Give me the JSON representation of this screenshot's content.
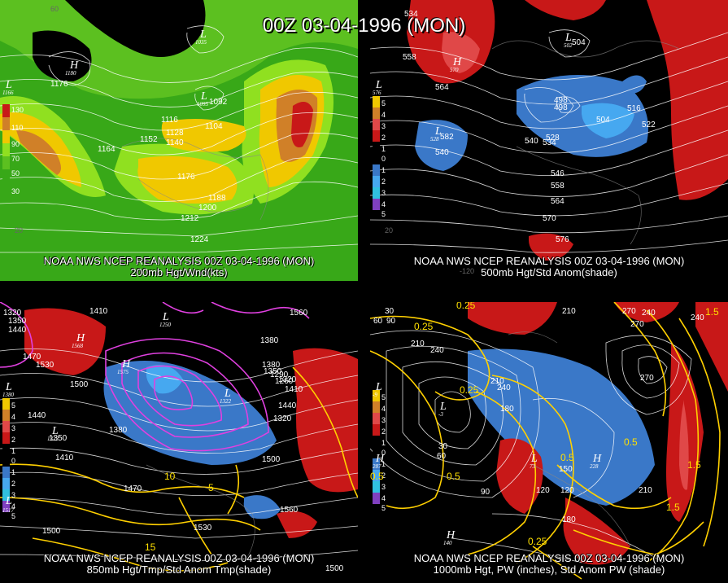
{
  "title": "00Z 03-04-1996 (MON)",
  "colors": {
    "green_light": "#90e020",
    "green_dark": "#38a818",
    "green_mid": "#5cc020",
    "yellow": "#f0c800",
    "orange": "#d08028",
    "red": "#c81818",
    "blue": "#3a78c8",
    "blue_light": "#46a8f0",
    "magenta": "#e040e0",
    "yellow_line": "#ffd000"
  },
  "panels": [
    {
      "id": "200mb",
      "caption_line1": "NOAA NWS NCEP REANALYSIS 00Z 03-04-1996 (MON)",
      "caption_line2": "200mb Hgt/Wnd(kts)",
      "contour_labels": [
        "1176",
        "1164",
        "1152",
        "1140",
        "1128",
        "1116",
        "1104",
        "1092",
        "1176",
        "1188",
        "1200",
        "1212",
        "1224"
      ],
      "centers": [
        {
          "type": "H",
          "value": "1180"
        },
        {
          "type": "L",
          "value": "1035"
        },
        {
          "type": "L",
          "value": "1095"
        },
        {
          "type": "L",
          "value": "1166"
        }
      ],
      "colorbar_labels": [
        "130",
        "110",
        "90",
        "70",
        "50",
        "30"
      ],
      "lat_labels": [
        "60",
        "20"
      ]
    },
    {
      "id": "500mb",
      "caption_line1": "NOAA NWS NCEP REANALYSIS 00Z 03-04-1996 (MON)",
      "caption_line2": "500mb Hgt/Std Anom(shade)",
      "contour_labels": [
        "534",
        "558",
        "564",
        "504",
        "498",
        "498",
        "504",
        "516",
        "522",
        "528",
        "540",
        "534",
        "540",
        "546",
        "558",
        "564",
        "570",
        "576",
        "582"
      ],
      "centers": [
        {
          "type": "H",
          "value": "570"
        },
        {
          "type": "L",
          "value": "502"
        },
        {
          "type": "L",
          "value": "528"
        },
        {
          "type": "L",
          "value": "576"
        }
      ],
      "colorbar_labels": [
        "5",
        "4",
        "3",
        "2",
        "1",
        "0",
        "1",
        "2",
        "3",
        "4",
        "5"
      ],
      "lat_labels": [
        "20",
        "-120"
      ]
    },
    {
      "id": "850mb",
      "caption_line1": "NOAA NWS NCEP REANALYSIS 00Z 03-04-1996 (MON)",
      "caption_line2": "850mb Hgt/Tmp/Std Anom Tmp(shade)",
      "contour_labels": [
        "1320",
        "1350",
        "1440",
        "1410",
        "1470",
        "1530",
        "1500",
        "1560",
        "1380",
        "1350",
        "1320",
        "1410",
        "1440",
        "1350",
        "1380",
        "1410",
        "1470",
        "1500",
        "1530",
        "1560",
        "1500",
        "1500",
        "1440",
        "1380",
        "1290",
        "1260",
        "1320"
      ],
      "centers": [
        {
          "type": "H",
          "value": "1568"
        },
        {
          "type": "H",
          "value": "1575"
        },
        {
          "type": "L",
          "value": "1250"
        },
        {
          "type": "L",
          "value": "1322"
        },
        {
          "type": "L",
          "value": "1380"
        },
        {
          "type": "L",
          "value": "1322"
        },
        {
          "type": "L",
          "value": "1517"
        }
      ],
      "temp_labels": [
        "10",
        "5",
        "15"
      ],
      "colorbar_labels": [
        "5",
        "4",
        "3",
        "2",
        "1",
        "0",
        "1",
        "2",
        "3",
        "4",
        "5"
      ]
    },
    {
      "id": "1000mb",
      "caption_line1": "NOAA NWS NCEP REANALYSIS 00Z 03-04-1996 (MON)",
      "caption_line2": "1000mb Hgt, PW (inches), Std Anom PW (shade)",
      "contour_labels": [
        "30",
        "60",
        "90",
        "210",
        "240",
        "270",
        "240",
        "180",
        "210",
        "270",
        "240",
        "30",
        "60",
        "90",
        "120",
        "150",
        "210",
        "120",
        "210",
        "240",
        "270",
        "180"
      ],
      "pw_labels": [
        "0.25",
        "0.25",
        "0.25",
        "0.5",
        "0.5",
        "1.5",
        "1.5",
        "0.5",
        "1.5",
        "0.25",
        "0.5"
      ],
      "centers": [
        {
          "type": "H",
          "value": "287"
        },
        {
          "type": "H",
          "value": "140"
        },
        {
          "type": "H",
          "value": "228"
        },
        {
          "type": "L",
          "value": "-3"
        },
        {
          "type": "L",
          "value": "73"
        },
        {
          "type": "L",
          "value": "-9"
        }
      ],
      "colorbar_labels": [
        "5",
        "4",
        "3",
        "2",
        "1",
        "0",
        "1",
        "2",
        "3",
        "4",
        "5"
      ]
    }
  ]
}
